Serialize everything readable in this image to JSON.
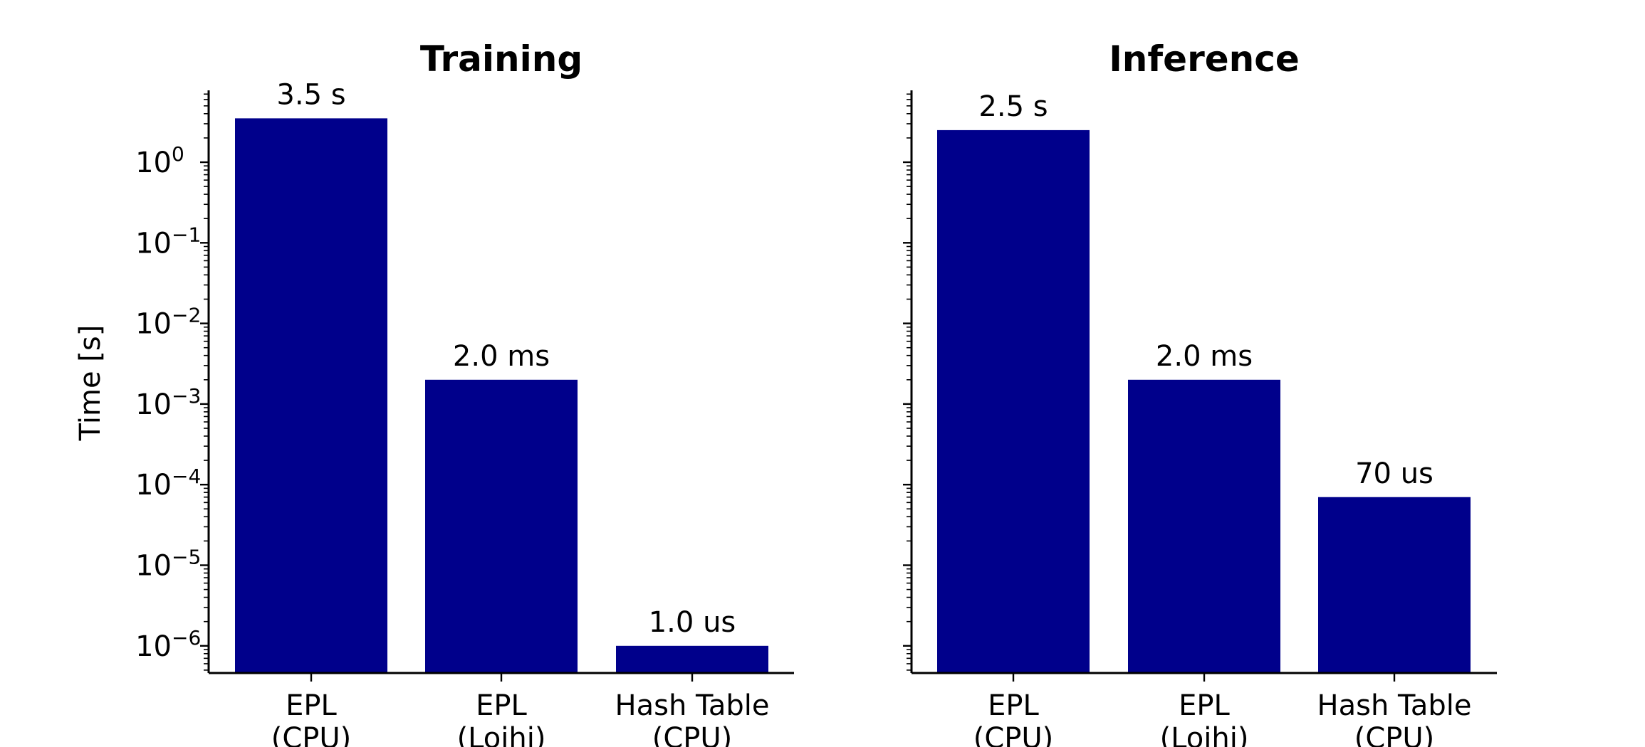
{
  "chart_data": [
    {
      "type": "bar",
      "title": "Training",
      "xlabel": "",
      "ylabel": "Time [s]",
      "yscale": "log",
      "ylim": [
        5e-07,
        8
      ],
      "grid": false,
      "color": "#00008b",
      "categories": [
        [
          "EPL",
          "(CPU)"
        ],
        [
          "EPL",
          "(Loihi)"
        ],
        [
          "Hash Table",
          "(CPU)"
        ]
      ],
      "values": [
        3.5,
        0.002,
        1e-06
      ],
      "data_labels": [
        "3.5 s",
        "2.0 ms",
        "1.0 us"
      ],
      "yticks": [
        {
          "value": 1.0,
          "base": "10",
          "exp": "0"
        },
        {
          "value": 0.1,
          "base": "10",
          "exp": "−1"
        },
        {
          "value": 0.01,
          "base": "10",
          "exp": "−2"
        },
        {
          "value": 0.001,
          "base": "10",
          "exp": "−3"
        },
        {
          "value": 0.0001,
          "base": "10",
          "exp": "−4"
        },
        {
          "value": 1e-05,
          "base": "10",
          "exp": "−5"
        },
        {
          "value": 1e-06,
          "base": "10",
          "exp": "−6"
        }
      ]
    },
    {
      "type": "bar",
      "title": "Inference",
      "xlabel": "",
      "ylabel": "",
      "yscale": "log",
      "ylim": [
        5e-07,
        8
      ],
      "grid": false,
      "color": "#00008b",
      "categories": [
        [
          "EPL",
          "(CPU)"
        ],
        [
          "EPL",
          "(Loihi)"
        ],
        [
          "Hash Table",
          "(CPU)"
        ]
      ],
      "values": [
        2.5,
        0.002,
        7e-05
      ],
      "data_labels": [
        "2.5 s",
        "2.0 ms",
        "70 us"
      ],
      "yticks": []
    }
  ]
}
